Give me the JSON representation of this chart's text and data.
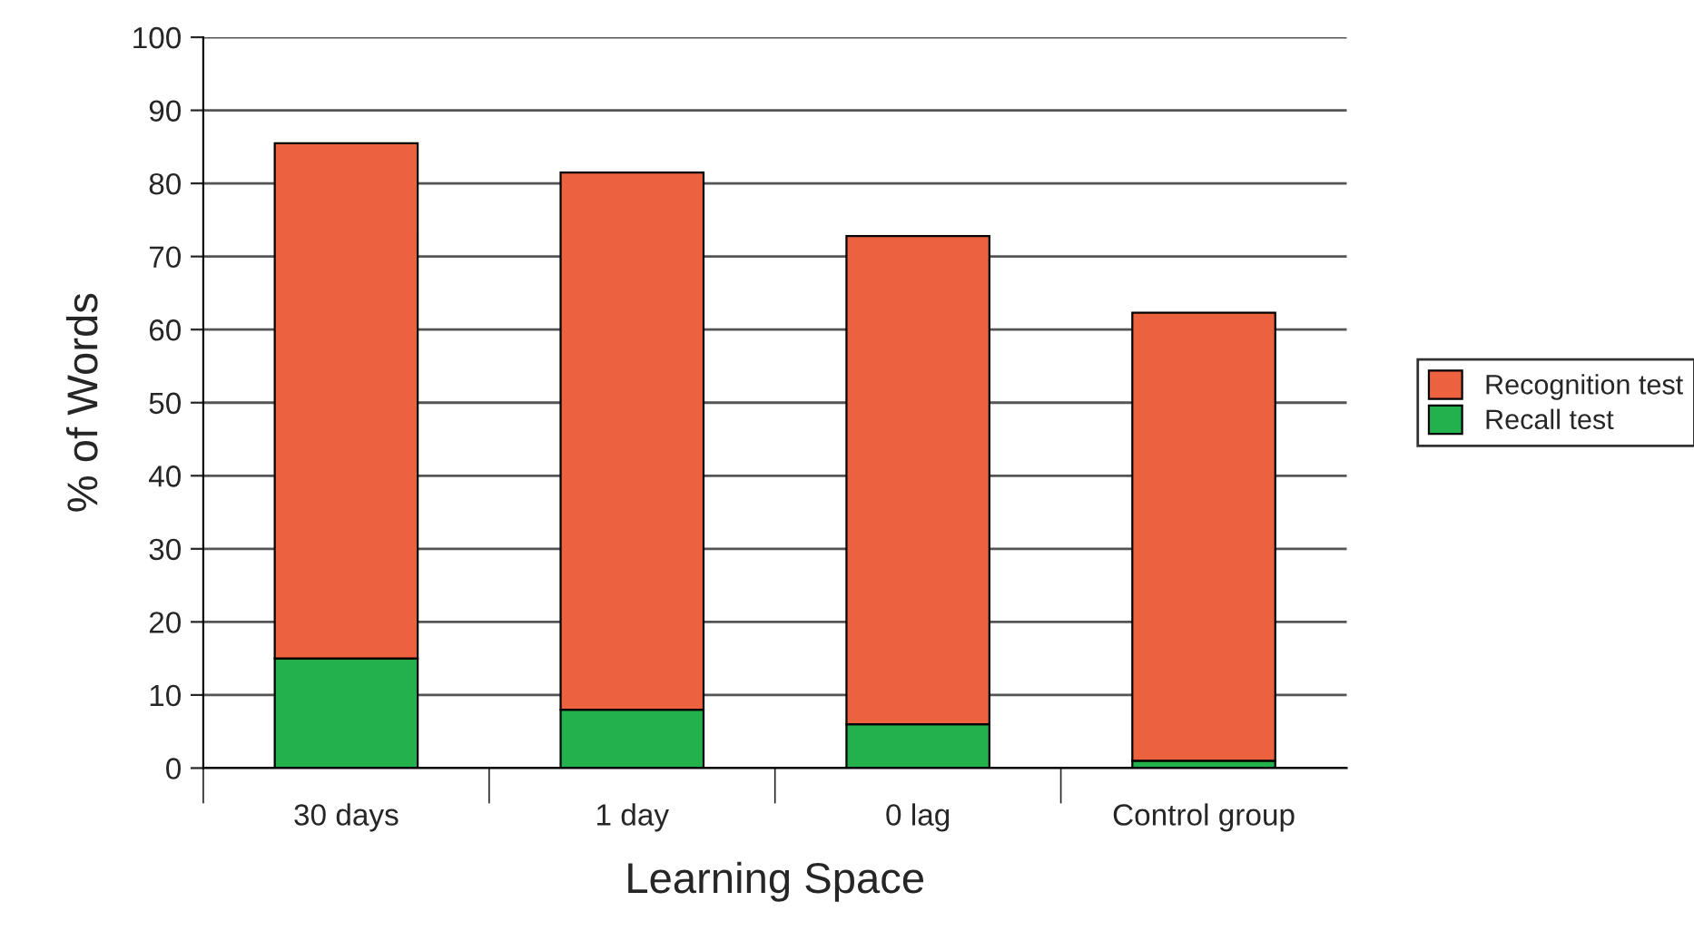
{
  "chart_data": {
    "type": "bar",
    "stacked": true,
    "xlabel": "Learning Space",
    "ylabel": "% of Words",
    "categories": [
      "30 days",
      "1 day",
      "0 lag",
      "Control group"
    ],
    "series": [
      {
        "name": "Recall test",
        "color": "#22b14c",
        "values": [
          15,
          8,
          6,
          1
        ]
      },
      {
        "name": "Recognition test",
        "color": "#ec613e",
        "values": [
          70.5,
          73.5,
          66.8,
          61.3
        ]
      }
    ],
    "ylim": [
      0,
      100
    ],
    "yticks": [
      0,
      10,
      20,
      30,
      40,
      50,
      60,
      70,
      80,
      90,
      100
    ],
    "grid": "y",
    "legend": "right"
  }
}
